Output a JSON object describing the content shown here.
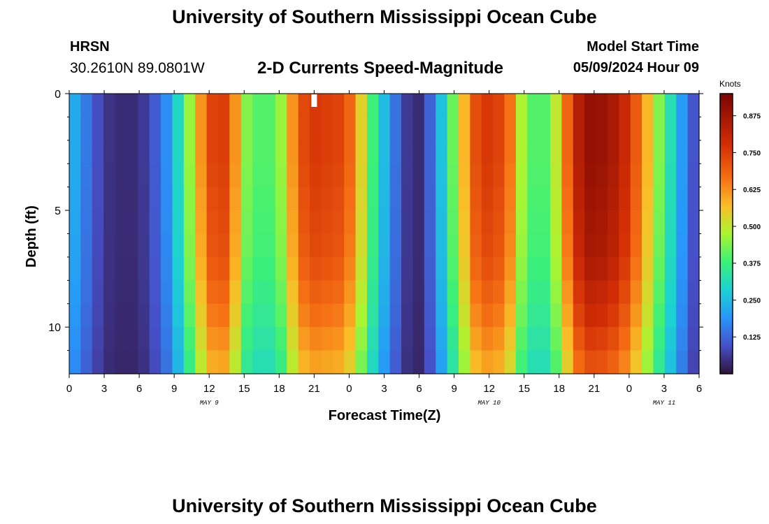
{
  "header": {
    "title": "University of Southern Mississippi Ocean Cube",
    "station": "HRSN",
    "coordinates": "30.2610N  89.0801W",
    "subtitle": "2-D Currents Speed-Magnitude",
    "model_start_label": "Model Start Time",
    "model_start_value": "05/09/2024 Hour 09",
    "bottom_title": "University of Southern Mississippi Ocean Cube"
  },
  "chart_data": {
    "type": "heatmap",
    "xlabel": "Forecast Time(Z)",
    "ylabel": "Depth (ft)",
    "x_ticks": [
      "0",
      "3",
      "6",
      "9",
      "12",
      "15",
      "18",
      "21",
      "0",
      "3",
      "6",
      "9",
      "12",
      "15",
      "18",
      "21",
      "0",
      "3",
      "6"
    ],
    "x_range_hours": [
      0,
      54
    ],
    "day_labels": [
      {
        "label": "MAY 9",
        "hour": 12
      },
      {
        "label": "MAY 10",
        "hour": 36
      },
      {
        "label": "MAY 11",
        "hour": 51
      }
    ],
    "y_ticks": [
      "0",
      "5",
      "10"
    ],
    "y_range_ft": [
      0,
      12
    ],
    "y_reversed": true,
    "current_time_marker_hour": 21,
    "colorbar": {
      "unit": "Knots",
      "ticks": [
        "0.125",
        "0.250",
        "0.375",
        "0.500",
        "0.625",
        "0.750",
        "0.875"
      ],
      "range": [
        0,
        0.95
      ]
    },
    "surface_speed_by_hour": [
      0.22,
      0.15,
      0.09,
      0.05,
      0.04,
      0.04,
      0.06,
      0.11,
      0.18,
      0.3,
      0.46,
      0.62,
      0.74,
      0.75,
      0.62,
      0.44,
      0.4,
      0.4,
      0.46,
      0.62,
      0.73,
      0.76,
      0.75,
      0.74,
      0.68,
      0.54,
      0.38,
      0.25,
      0.14,
      0.06,
      0.04,
      0.12,
      0.26,
      0.42,
      0.58,
      0.72,
      0.76,
      0.74,
      0.66,
      0.48,
      0.4,
      0.4,
      0.5,
      0.68,
      0.84,
      0.9,
      0.89,
      0.86,
      0.8,
      0.7,
      0.58,
      0.44,
      0.32,
      0.2,
      0.1
    ],
    "depth_factor": [
      1.0,
      1.0,
      1.0,
      0.99,
      0.98,
      0.97,
      0.96,
      0.94,
      0.91,
      0.88,
      0.84,
      0.8
    ]
  }
}
